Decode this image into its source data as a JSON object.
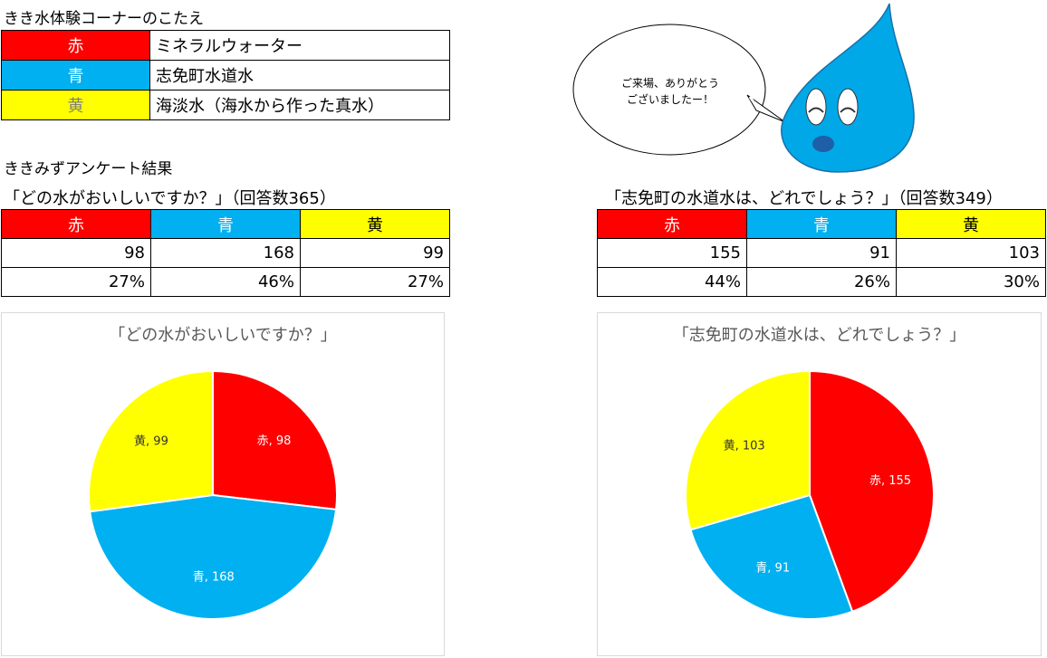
{
  "answer_section": {
    "heading": "きき水体験コーナーのこたえ",
    "rows": [
      {
        "color_label": "赤",
        "answer": "ミネラルウォーター",
        "color": "#ff0000"
      },
      {
        "color_label": "青",
        "answer": "志免町水道水",
        "color": "#00b0f0"
      },
      {
        "color_label": "黄",
        "answer": "海淡水（海水から作った真水）",
        "color": "#ffff00"
      }
    ]
  },
  "survey": {
    "heading": "ききみずアンケート結果"
  },
  "speech_bubble": {
    "line1": "ご来場、ありがとう",
    "line2": "ございましたー！"
  },
  "survey1": {
    "question": "「どの水がおいしいですか？」（回答数365）",
    "headers": [
      "赤",
      "青",
      "黄"
    ],
    "counts": [
      "98",
      "168",
      "99"
    ],
    "percents": [
      "27%",
      "46%",
      "27%"
    ]
  },
  "survey2": {
    "question": "「志免町の水道水は、どれでしょう？」（回答数349）",
    "headers": [
      "赤",
      "青",
      "黄"
    ],
    "counts": [
      "155",
      "91",
      "103"
    ],
    "percents": [
      "44%",
      "26%",
      "30%"
    ]
  },
  "chart_data": [
    {
      "type": "pie",
      "title": "「どの水がおいしいですか？」",
      "categories": [
        "赤",
        "青",
        "黄"
      ],
      "values": [
        98,
        168,
        99
      ],
      "colors": [
        "#ff0000",
        "#00b0f0",
        "#ffff00"
      ],
      "data_labels": [
        "赤, 98",
        "青, 168",
        "黄, 99"
      ]
    },
    {
      "type": "pie",
      "title": "「志免町の水道水は、どれでしょう？」",
      "categories": [
        "赤",
        "青",
        "黄"
      ],
      "values": [
        155,
        91,
        103
      ],
      "colors": [
        "#ff0000",
        "#00b0f0",
        "#ffff00"
      ],
      "data_labels": [
        "赤, 155",
        "青, 91",
        "黄, 103"
      ]
    }
  ]
}
